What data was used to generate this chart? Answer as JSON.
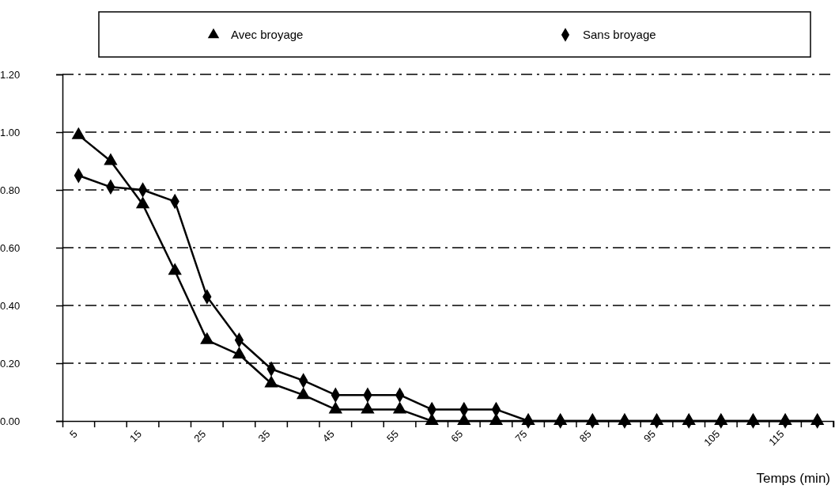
{
  "chart_data": {
    "type": "line",
    "xlabel": "Temps (min)",
    "categories": [
      "5",
      null,
      "15",
      null,
      "25",
      null,
      "35",
      null,
      "45",
      null,
      "55",
      null,
      "65",
      null,
      "75",
      null,
      "85",
      null,
      "95",
      null,
      "105",
      null,
      "115",
      null
    ],
    "series": [
      {
        "name": "Avec broyage",
        "color": "#000000",
        "marker": "triangle",
        "values": [
          0.99,
          0.9,
          0.75,
          0.52,
          0.28,
          0.23,
          0.13,
          0.09,
          0.04,
          0.04,
          0.04,
          0,
          0,
          0,
          0,
          0,
          0,
          0,
          0,
          0,
          0,
          0,
          0,
          0
        ]
      },
      {
        "name": "Sans broyage",
        "color": "#000000",
        "marker": "diamond",
        "values": [
          0.85,
          0.81,
          0.8,
          0.76,
          0.43,
          0.28,
          0.18,
          0.14,
          0.09,
          0.09,
          0.09,
          0.04,
          0.04,
          0.04,
          0,
          0,
          0,
          0,
          0,
          0,
          0,
          0,
          0,
          0
        ]
      }
    ],
    "ylim": [
      0,
      1.2
    ],
    "yticks": [
      {
        "value": 0,
        "label": "0.00"
      },
      {
        "value": 0.2,
        "label": "0.20"
      },
      {
        "value": 0.4,
        "label": "0.40"
      },
      {
        "value": 0.6,
        "label": "0.60"
      },
      {
        "value": 0.8,
        "label": "0.80"
      },
      {
        "value": 1,
        "label": "1.00"
      },
      {
        "value": 1.2,
        "label": "1.20"
      }
    ],
    "grid": "y",
    "legend": "top",
    "line_style": "solid"
  }
}
